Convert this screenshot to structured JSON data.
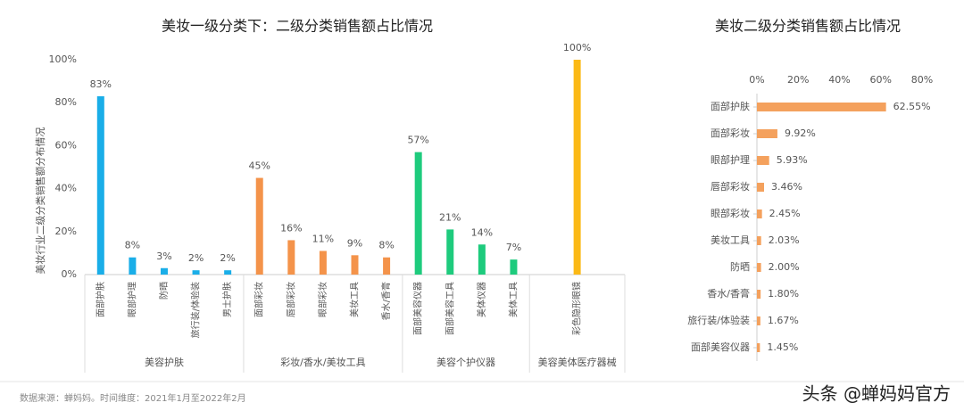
{
  "chart_data": [
    {
      "type": "grouped-bar",
      "title": "美妆一级分类下：二级分类销售额占比情况",
      "y_label": "美妆行业二级分类销售额分布情况",
      "ylim": [
        0,
        100
      ],
      "yticks": [
        {
          "value": 0,
          "label": "0%"
        },
        {
          "value": 20,
          "label": "20%"
        },
        {
          "value": 40,
          "label": "40%"
        },
        {
          "value": 60,
          "label": "60%"
        },
        {
          "value": 80,
          "label": "80%"
        },
        {
          "value": 100,
          "label": "100%"
        }
      ],
      "groups": [
        {
          "name": "美容护肤",
          "color": "#1aaee8",
          "categories": [
            "面部护肤",
            "眼部护理",
            "防晒",
            "旅行装/体验装",
            "男士护肤"
          ],
          "values": [
            83,
            8,
            3,
            2,
            2
          ],
          "value_labels": [
            "83%",
            "8%",
            "3%",
            "2%",
            "2%"
          ]
        },
        {
          "name": "彩妆/香水/美妆工具",
          "color": "#f4934a",
          "categories": [
            "面部彩妆",
            "唇部彩妆",
            "眼部彩妆",
            "美妆工具",
            "香水/香膏"
          ],
          "values": [
            45,
            16,
            11,
            9,
            8
          ],
          "value_labels": [
            "45%",
            "16%",
            "11%",
            "9%",
            "8%"
          ]
        },
        {
          "name": "美容个护仪器",
          "color": "#1ecb7d",
          "categories": [
            "面部美容仪器",
            "面部美容工具",
            "美体仪器",
            "美体工具"
          ],
          "values": [
            57,
            21,
            14,
            7
          ],
          "value_labels": [
            "57%",
            "21%",
            "14%",
            "7%"
          ]
        },
        {
          "name": "美容美体医疗器械",
          "color": "#fbb916",
          "categories": [
            "彩色隐形眼镜"
          ],
          "values": [
            100
          ],
          "value_labels": [
            "100%"
          ]
        }
      ]
    },
    {
      "type": "hbar",
      "title": "美妆二级分类销售额占比情况",
      "xlim": [
        0,
        80
      ],
      "xticks": [
        {
          "value": 0,
          "label": "0%"
        },
        {
          "value": 20,
          "label": "20%"
        },
        {
          "value": 40,
          "label": "40%"
        },
        {
          "value": 60,
          "label": "60%"
        },
        {
          "value": 80,
          "label": "80%"
        }
      ],
      "color": "#f4a15d",
      "categories": [
        "面部护肤",
        "面部彩妆",
        "眼部护理",
        "唇部彩妆",
        "眼部彩妆",
        "美妆工具",
        "防晒",
        "香水/香膏",
        "旅行装/体验装",
        "面部美容仪器"
      ],
      "values": [
        62.55,
        9.92,
        5.93,
        3.46,
        2.45,
        2.03,
        2.0,
        1.8,
        1.67,
        1.45
      ],
      "value_labels": [
        "62.55%",
        "9.92%",
        "5.93%",
        "3.46%",
        "2.45%",
        "2.03%",
        "2.00%",
        "1.80%",
        "1.67%",
        "1.45%"
      ]
    }
  ],
  "footer": {
    "source": "数据来源：蝉妈妈。时间维度：2021年1月至2022年2月",
    "watermark": "头条 @蝉妈妈官方"
  }
}
